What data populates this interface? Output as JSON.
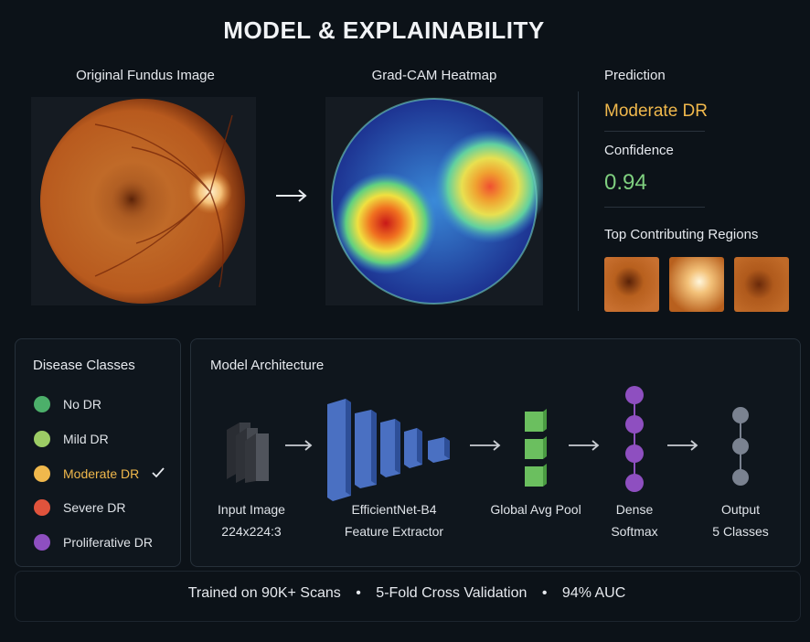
{
  "title": "MODEL & EXPLAINABILITY",
  "images": {
    "original_label": "Original Fundus Image",
    "heatmap_label": "Grad-CAM Heatmap"
  },
  "prediction": {
    "label": "Prediction",
    "value": "Moderate DR",
    "confidence_label": "Confidence",
    "confidence_value": "0.94",
    "regions_label": "Top Contributing Regions"
  },
  "legend": {
    "title": "Disease Classes",
    "items": [
      {
        "label": "No DR",
        "color": "#4caf6a"
      },
      {
        "label": "Mild DR",
        "color": "#9ccc65"
      },
      {
        "label": "Moderate DR",
        "color": "#f0b84c",
        "selected": true
      },
      {
        "label": "Severe DR",
        "color": "#e0533c"
      },
      {
        "label": "Proliferative DR",
        "color": "#8e4fc0"
      }
    ],
    "check_icon": "check-icon"
  },
  "architecture": {
    "title": "Model Architecture",
    "stages": [
      {
        "line1": "Input Image",
        "line2": "224x224:3"
      },
      {
        "line1": "EfficientNet-B4",
        "line2": "Feature Extractor"
      },
      {
        "line1": "Global Avg Pool",
        "line2": ""
      },
      {
        "line1": "Dense",
        "line2": "Softmax"
      },
      {
        "line1": "Output",
        "line2": "5 Classes"
      }
    ]
  },
  "footer": {
    "item1": "Trained on 90K+ Scans",
    "item2": "5-Fold Cross Validation",
    "item3": "94% AUC",
    "separator": "•"
  },
  "colors": {
    "accent_orange": "#f0b84c",
    "accent_green": "#7fcf7f",
    "block_blue": "#4a70c2",
    "block_green": "#6bbf5f",
    "node_purple": "#8e4fc0",
    "node_gray": "#7a8290"
  }
}
